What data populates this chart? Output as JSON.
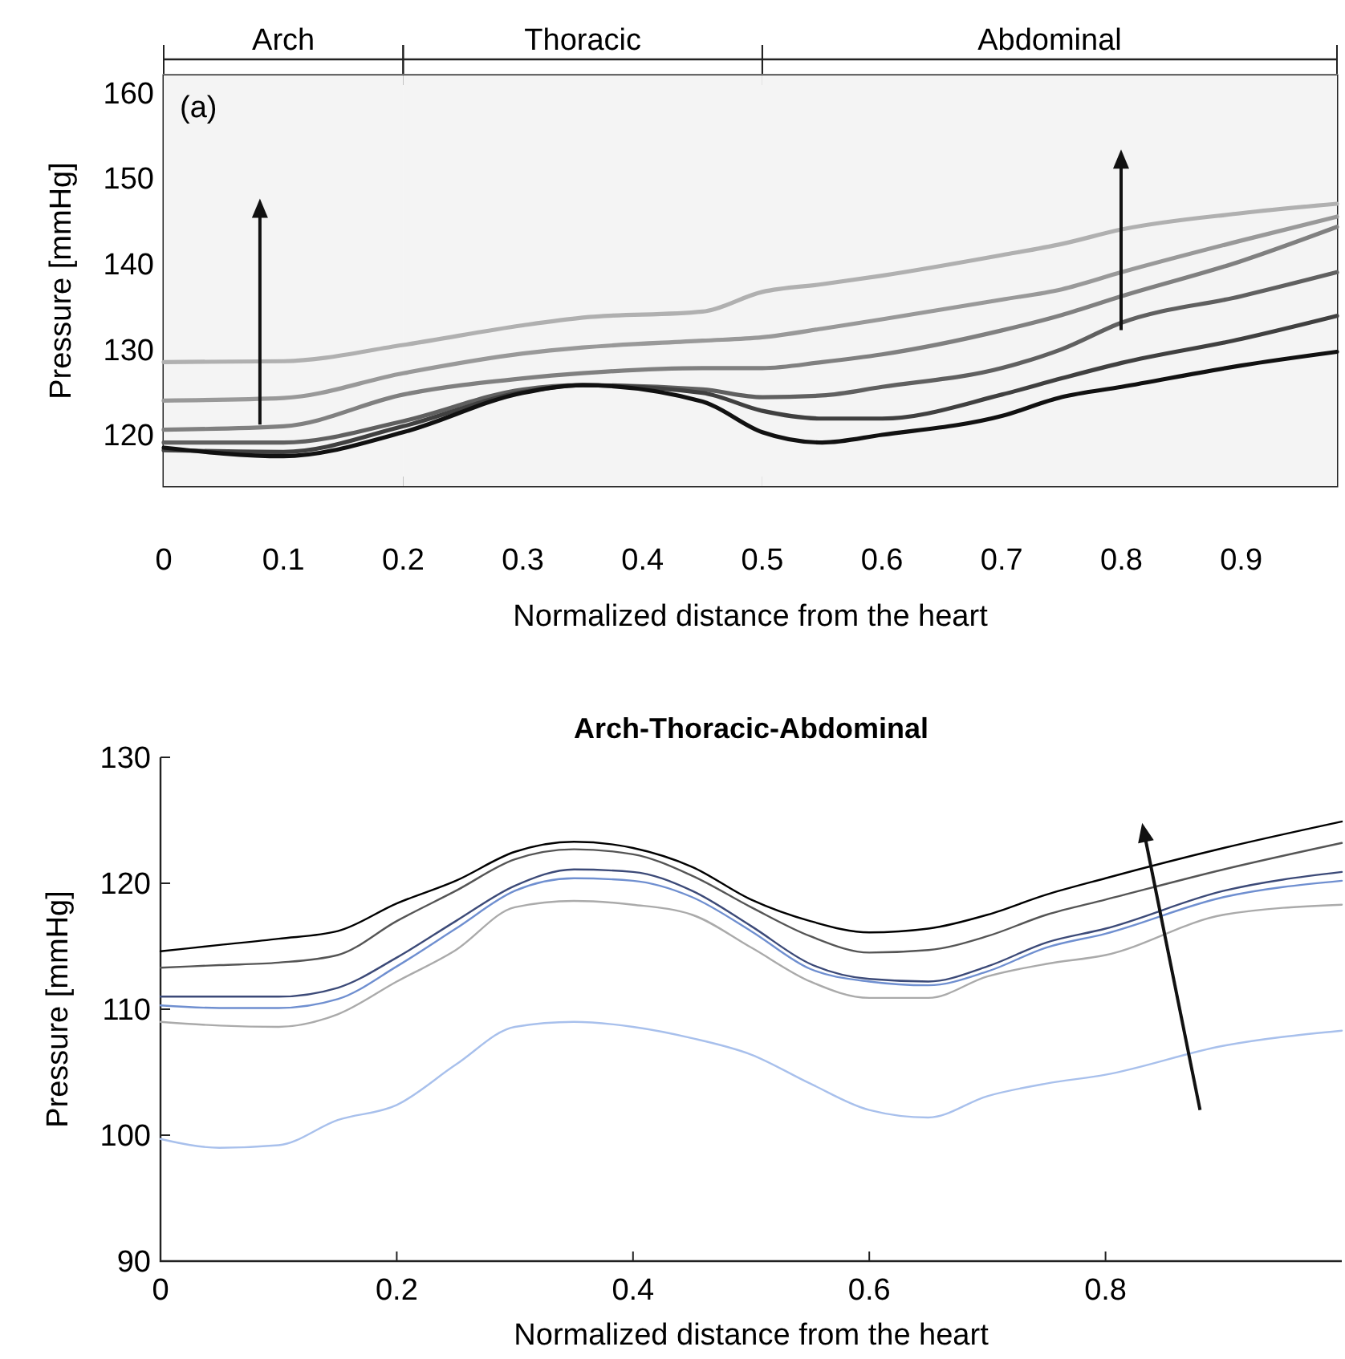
{
  "chart_data": [
    {
      "type": "line",
      "xlabel": "Normalized distance from the heart",
      "ylabel": "Pressure [mmHg]",
      "xlim": [
        0,
        0.98
      ],
      "ylim": [
        114,
        162
      ],
      "xticks": [
        0,
        0.1,
        0.2,
        0.3,
        0.4,
        0.5,
        0.6,
        0.7,
        0.8,
        0.9
      ],
      "yticks": [
        120,
        130,
        140,
        150,
        160
      ],
      "annotations": [
        "(a)"
      ],
      "bands": [
        {
          "axis": "x",
          "from": 0,
          "to": 0.2,
          "label": "Arch",
          "color": "#f4f4f4"
        },
        {
          "axis": "x",
          "from": 0.2,
          "to": 0.5,
          "label": "Thoracic",
          "color": "#f4f4f4"
        },
        {
          "axis": "x",
          "from": 0.5,
          "to": 0.98,
          "label": "Abdominal",
          "color": "#f4f4f4"
        }
      ],
      "x": [
        0,
        0.1,
        0.2,
        0.3,
        0.35,
        0.45,
        0.5,
        0.55,
        0.6,
        0.7,
        0.75,
        0.8,
        0.9,
        0.98
      ],
      "series": [
        {
          "color": "#b0b0b0",
          "values": [
            128.5,
            128.6,
            130.5,
            132.8,
            133.7,
            134.4,
            136.7,
            137.6,
            138.6,
            141,
            142.3,
            144,
            145.9,
            147
          ]
        },
        {
          "color": "#999999",
          "values": [
            124,
            124.3,
            127.2,
            129.5,
            130.2,
            131,
            131.4,
            132.4,
            133.5,
            135.8,
            137,
            139,
            142.7,
            145.5
          ]
        },
        {
          "color": "#808080",
          "values": [
            120.6,
            121,
            124.7,
            126.6,
            127.2,
            127.8,
            127.8,
            128.5,
            129.4,
            132.2,
            134,
            136.2,
            140.3,
            144.3
          ]
        },
        {
          "color": "#606060",
          "values": [
            119.1,
            119.1,
            121.6,
            125.3,
            125.8,
            125.3,
            124.4,
            124.6,
            125.6,
            127.8,
            130,
            133.1,
            136.2,
            139
          ]
        },
        {
          "color": "#404040",
          "values": [
            118.2,
            118,
            121,
            125,
            125.8,
            124.9,
            122.8,
            121.9,
            121.9,
            124.7,
            126.6,
            128.4,
            131.2,
            133.9
          ]
        },
        {
          "color": "#111111",
          "values": [
            118.5,
            117.5,
            120.3,
            124.9,
            125.8,
            123.9,
            120.3,
            119.1,
            120,
            122.2,
            124.4,
            125.6,
            128.1,
            129.7
          ]
        }
      ]
    },
    {
      "type": "line",
      "title": "Arch-Thoracic-Abdominal",
      "xlabel": "Normalized distance from the heart",
      "ylabel": "Pressure [mmHg]",
      "xlim": [
        0,
        1
      ],
      "ylim": [
        90,
        130
      ],
      "xticks": [
        0,
        0.2,
        0.4,
        0.6,
        0.8
      ],
      "yticks": [
        90,
        100,
        110,
        120,
        130
      ],
      "x": [
        0,
        0.05,
        0.1,
        0.15,
        0.2,
        0.25,
        0.3,
        0.35,
        0.4,
        0.45,
        0.5,
        0.55,
        0.6,
        0.65,
        0.7,
        0.75,
        0.8,
        0.9,
        1
      ],
      "series": [
        {
          "color": "#000000",
          "values": [
            114.6,
            115.1,
            115.6,
            116.2,
            118.4,
            120.2,
            122.5,
            123.3,
            122.8,
            121.3,
            118.7,
            117,
            116.1,
            116.4,
            117.5,
            119.1,
            120.4,
            122.8,
            124.9
          ]
        },
        {
          "color": "#555555",
          "values": [
            113.3,
            113.5,
            113.7,
            114.3,
            117,
            119.4,
            121.9,
            122.7,
            122.3,
            120.6,
            118.1,
            115.8,
            114.5,
            114.7,
            115.8,
            117.5,
            118.7,
            121.1,
            123.2
          ]
        },
        {
          "color": "#3c4a78",
          "values": [
            111,
            111,
            111,
            111.7,
            114.1,
            117,
            119.8,
            121.1,
            120.9,
            119.4,
            116.6,
            113.6,
            112.4,
            112.2,
            113.4,
            115.3,
            116.4,
            119.4,
            120.9
          ]
        },
        {
          "color": "#6f8fd0",
          "values": [
            110.3,
            110.1,
            110.1,
            110.8,
            113.4,
            116.4,
            119.4,
            120.4,
            120.2,
            118.9,
            116.2,
            113.2,
            112.2,
            111.9,
            113,
            114.9,
            116,
            118.9,
            120.2
          ]
        },
        {
          "color": "#aaaaaa",
          "values": [
            109,
            108.7,
            108.6,
            109.6,
            112.2,
            114.7,
            118.1,
            118.6,
            118.3,
            117.5,
            114.9,
            112.2,
            110.9,
            110.9,
            112.6,
            113.6,
            114.3,
            117.5,
            118.3
          ]
        },
        {
          "color": "#a8c0ec",
          "values": [
            99.7,
            99,
            99.2,
            101.2,
            102.4,
            105.6,
            108.6,
            109,
            108.6,
            107.7,
            106.4,
            104.1,
            102,
            101.4,
            103.1,
            104.1,
            104.8,
            107.1,
            108.3
          ]
        }
      ]
    }
  ]
}
